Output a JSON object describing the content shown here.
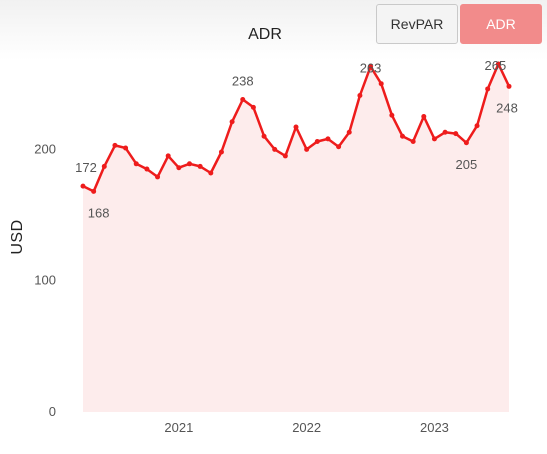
{
  "header": {
    "title": "ADR",
    "buttons": [
      {
        "label": "RevPAR",
        "active": false
      },
      {
        "label": "ADR",
        "active": true
      }
    ]
  },
  "colors": {
    "line": "#ee1c1c",
    "area": "#fdecec",
    "active_button": "#f28b8b"
  },
  "chart_data": {
    "type": "area",
    "title": "ADR",
    "ylabel": "USD",
    "xlabel": "",
    "ylim": [
      0,
      265
    ],
    "yticks": [
      0,
      100,
      200
    ],
    "x_tick_labels": [
      {
        "label": "2021",
        "x": "2021-01"
      },
      {
        "label": "2022",
        "x": "2022-01"
      },
      {
        "label": "2023",
        "x": "2023-01"
      }
    ],
    "x": [
      "2020-04",
      "2020-05",
      "2020-06",
      "2020-07",
      "2020-08",
      "2020-09",
      "2020-10",
      "2020-11",
      "2020-12",
      "2021-01",
      "2021-02",
      "2021-03",
      "2021-04",
      "2021-05",
      "2021-06",
      "2021-07",
      "2021-08",
      "2021-09",
      "2021-10",
      "2021-11",
      "2021-12",
      "2022-01",
      "2022-02",
      "2022-03",
      "2022-04",
      "2022-05",
      "2022-06",
      "2022-07",
      "2022-08",
      "2022-09",
      "2022-10",
      "2022-11",
      "2022-12",
      "2023-01",
      "2023-02",
      "2023-03",
      "2023-04",
      "2023-05",
      "2023-06",
      "2023-07",
      "2023-08"
    ],
    "values": [
      172,
      168,
      187,
      203,
      201,
      189,
      185,
      179,
      195,
      186,
      189,
      187,
      182,
      198,
      221,
      238,
      232,
      210,
      200,
      195,
      217,
      200,
      206,
      208,
      202,
      213,
      241,
      263,
      250,
      226,
      210,
      206,
      225,
      208,
      213,
      212,
      205,
      218,
      246,
      265,
      248
    ],
    "data_labels": [
      {
        "index": 0,
        "text": "172"
      },
      {
        "index": 1,
        "text": "168"
      },
      {
        "index": 15,
        "text": "238"
      },
      {
        "index": 27,
        "text": "263"
      },
      {
        "index": 36,
        "text": "205"
      },
      {
        "index": 39,
        "text": "265"
      },
      {
        "index": 40,
        "text": "248"
      }
    ],
    "grid": false,
    "legend": "none"
  }
}
